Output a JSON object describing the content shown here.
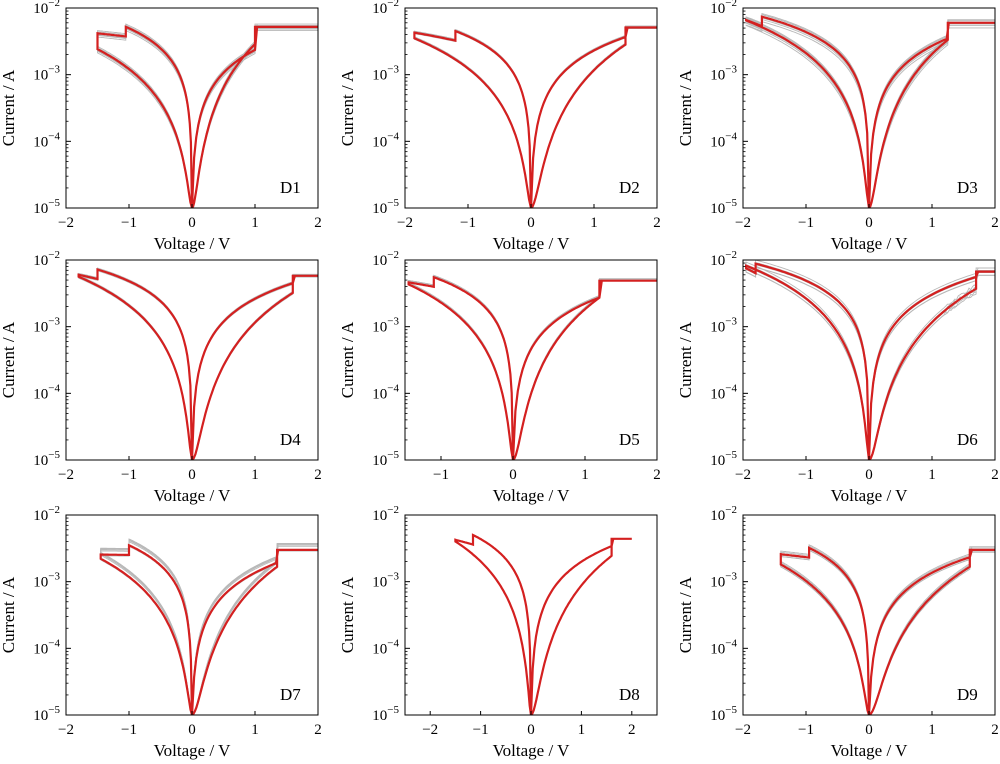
{
  "chart_data": [
    {
      "type": "line",
      "label": "D1",
      "xlabel": "Voltage / V",
      "ylabel": "Current / A",
      "xlim": [
        -2,
        2
      ],
      "ylim_log10": [
        -5,
        -2
      ],
      "xticks": [
        "−2",
        "−1",
        "0",
        "1",
        "2"
      ],
      "yscale": "log",
      "vmin": -1.5,
      "vmax": 2,
      "isat": 0.0052,
      "iset_neg": 0.0048,
      "vset": 1.0,
      "vreset": -1.05,
      "hi_peak": 0.0052,
      "lo_edge": 0.0024,
      "gray_spread": 0.12,
      "red_n": 1,
      "noisy": false
    },
    {
      "type": "line",
      "label": "D2",
      "xlabel": "Voltage / V",
      "ylabel": "Current / A",
      "xlim": [
        -2,
        2
      ],
      "ylim_log10": [
        -5,
        -2
      ],
      "xticks": [
        "−2",
        "−1",
        "0",
        "1",
        "2"
      ],
      "yscale": "log",
      "vmin": -1.85,
      "vmax": 2,
      "isat": 0.0051,
      "iset_neg": 0.0058,
      "vset": 1.5,
      "vreset": -1.2,
      "hi_peak": 0.0045,
      "lo_edge": 0.0035,
      "gray_spread": 0.1,
      "red_n": 1,
      "noisy": false
    },
    {
      "type": "line",
      "label": "D3",
      "xlabel": "Voltage / V",
      "ylabel": "Current / A",
      "xlim": [
        -2,
        2
      ],
      "ylim_log10": [
        -5,
        -2
      ],
      "xticks": [
        "−2",
        "−1",
        "0",
        "1",
        "2"
      ],
      "yscale": "log",
      "vmin": -1.95,
      "vmax": 2,
      "isat": 0.006,
      "iset_neg": 0.0085,
      "vset": 1.25,
      "vreset": -1.7,
      "hi_peak": 0.0074,
      "lo_edge": 0.0065,
      "gray_spread": 0.18,
      "red_n": 1,
      "noisy": false
    },
    {
      "type": "line",
      "label": "D4",
      "xlabel": "Voltage / V",
      "ylabel": "Current / A",
      "xlim": [
        -2,
        2
      ],
      "ylim_log10": [
        -5,
        -2
      ],
      "xticks": [
        "−2",
        "−1",
        "0",
        "1",
        "2"
      ],
      "yscale": "log",
      "vmin": -1.8,
      "vmax": 2,
      "isat": 0.0058,
      "iset_neg": 0.0072,
      "vset": 1.6,
      "vreset": -1.5,
      "hi_peak": 0.0072,
      "lo_edge": 0.0056,
      "gray_spread": 0.06,
      "red_n": 1,
      "noisy": false
    },
    {
      "type": "line",
      "label": "D5",
      "xlabel": "Voltage / V",
      "ylabel": "Current / A",
      "xlim": [
        -1.5,
        2
      ],
      "ylim_log10": [
        -5,
        -2
      ],
      "xticks": [
        "−1",
        "0",
        "1",
        "2"
      ],
      "yscale": "log",
      "vmin": -1.45,
      "vmax": 2,
      "isat": 0.0049,
      "iset_neg": 0.0056,
      "vset": 1.2,
      "vreset": -1.1,
      "hi_peak": 0.0055,
      "lo_edge": 0.0043,
      "gray_spread": 0.08,
      "red_n": 1,
      "noisy": false
    },
    {
      "type": "line",
      "label": "D6",
      "xlabel": "Voltage / V",
      "ylabel": "Current / A",
      "xlim": [
        -2,
        2
      ],
      "ylim_log10": [
        -5,
        -2
      ],
      "xticks": [
        "−2",
        "−1",
        "0",
        "1",
        "2"
      ],
      "yscale": "log",
      "vmin": -1.95,
      "vmax": 2,
      "isat": 0.0067,
      "iset_neg": 0.0092,
      "vset": 1.7,
      "vreset": -1.8,
      "hi_peak": 0.0088,
      "lo_edge": 0.0082,
      "gray_spread": 0.14,
      "red_n": 1,
      "noisy": true
    },
    {
      "type": "line",
      "label": "D7",
      "xlabel": "Voltage / V",
      "ylabel": "Current / A",
      "xlim": [
        -2,
        2
      ],
      "ylim_log10": [
        -5,
        -2
      ],
      "xticks": [
        "−2",
        "−1",
        "0",
        "1",
        "2"
      ],
      "yscale": "log",
      "vmin": -1.45,
      "vmax": 2,
      "isat": 0.003,
      "iset_neg": 0.0026,
      "vset": 1.35,
      "vreset": -1.0,
      "hi_peak": 0.0035,
      "lo_edge": 0.0022,
      "gray_spread": 0.25,
      "red_n": 1,
      "noisy": false
    },
    {
      "type": "line",
      "label": "D8",
      "xlabel": "Voltage / V",
      "ylabel": "Current / A",
      "xlim": [
        -2.5,
        2.5
      ],
      "ylim_log10": [
        -5,
        -2
      ],
      "xticks": [
        "−2",
        "−1",
        "0",
        "1",
        "2"
      ],
      "yscale": "log",
      "vmin": -1.5,
      "vmax": 2,
      "isat": 0.0044,
      "iset_neg": 0.0052,
      "vset": 1.6,
      "vreset": -1.15,
      "hi_peak": 0.005,
      "lo_edge": 0.004,
      "gray_spread": 0.0,
      "red_n": 1,
      "noisy": false
    },
    {
      "type": "line",
      "label": "D9",
      "xlabel": "Voltage / V",
      "ylabel": "Current / A",
      "xlim": [
        -2,
        2
      ],
      "ylim_log10": [
        -5,
        -2
      ],
      "xticks": [
        "−2",
        "−1",
        "0",
        "1",
        "2"
      ],
      "yscale": "log",
      "vmin": -1.4,
      "vmax": 2,
      "isat": 0.003,
      "iset_neg": 0.003,
      "vset": 1.6,
      "vreset": -0.95,
      "hi_peak": 0.0032,
      "lo_edge": 0.0018,
      "gray_spread": 0.15,
      "red_n": 1,
      "noisy": false
    }
  ],
  "colors": {
    "red": "#d42020",
    "gray": "#b8b8b8",
    "axis": "#000000"
  },
  "ytick_exponents": [
    "-2",
    "-3",
    "-4",
    "-5"
  ]
}
